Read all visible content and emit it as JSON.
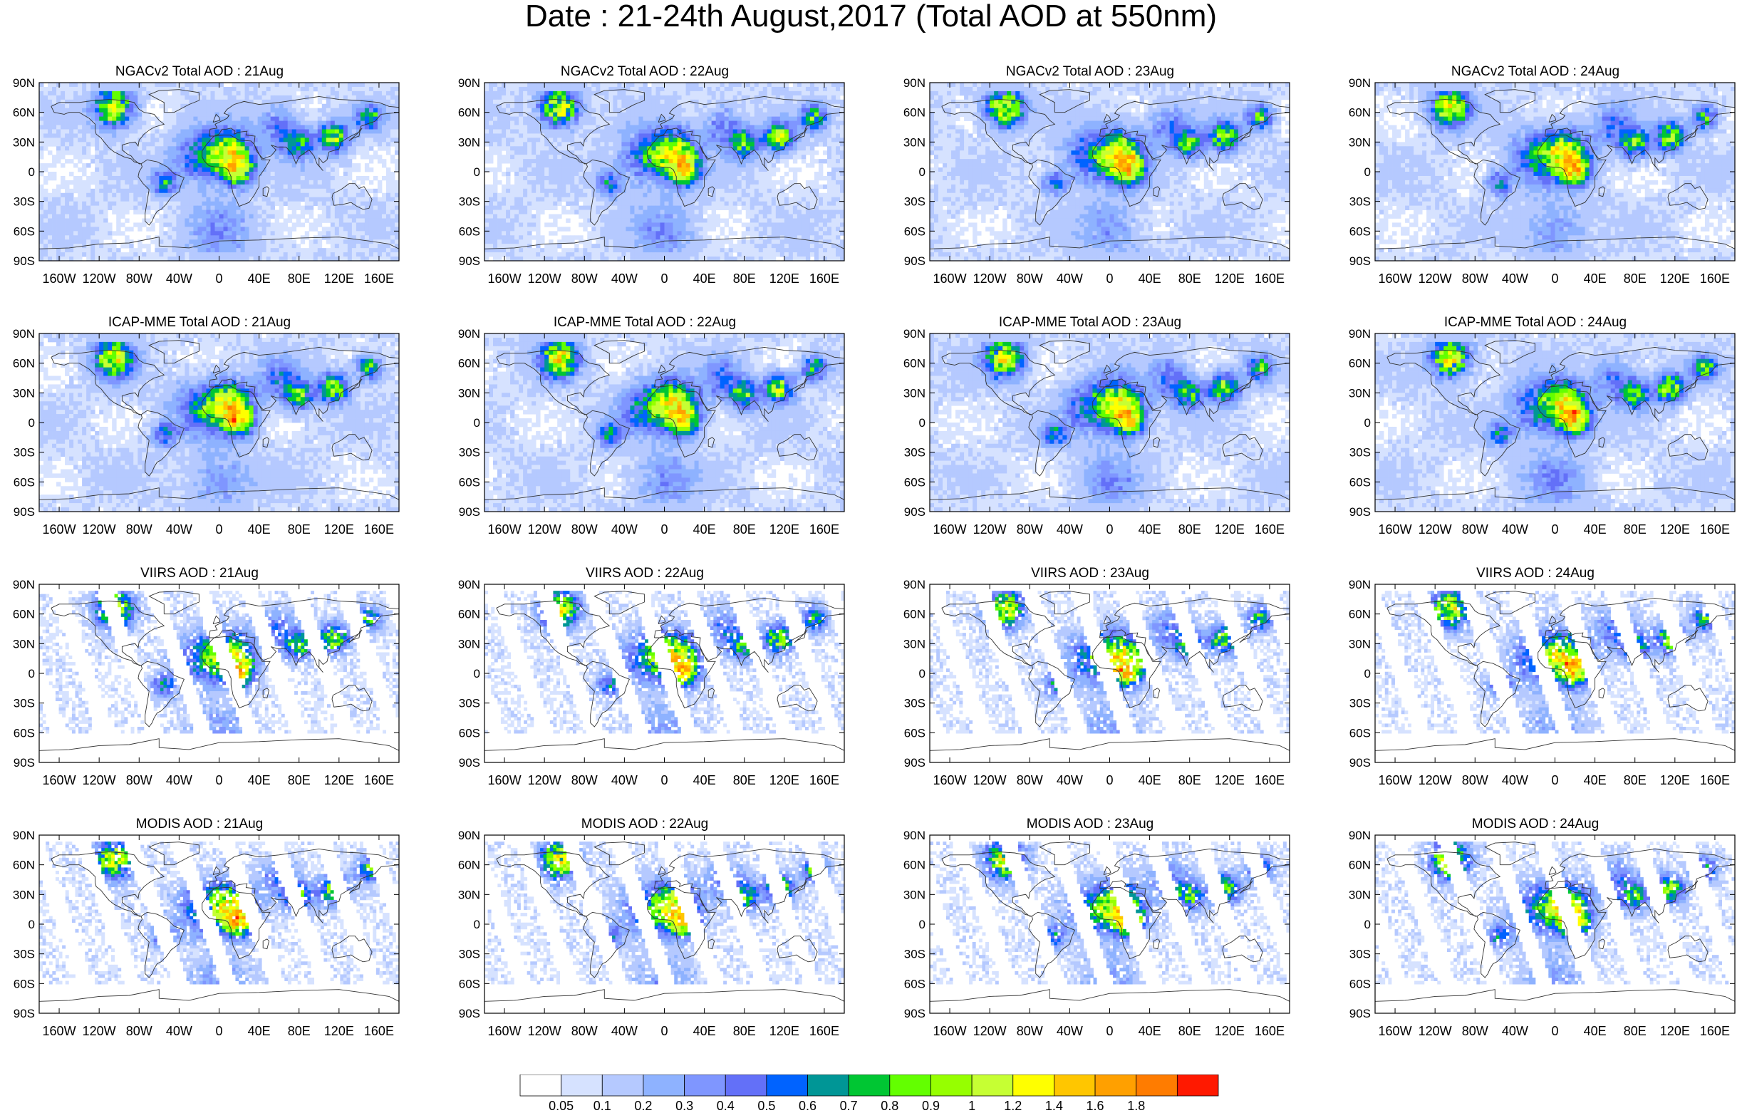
{
  "title": "Date : 21-24th August,2017 (Total AOD at 550nm)",
  "axis": {
    "lat_labels": [
      "90N",
      "60N",
      "30N",
      "0",
      "30S",
      "60S",
      "90S"
    ],
    "lon_labels": [
      "160W",
      "120W",
      "80W",
      "40W",
      "0",
      "40E",
      "80E",
      "120E",
      "160E"
    ]
  },
  "panels": [
    {
      "title": "NGACv2 Total AOD : 21Aug",
      "kind": "model",
      "seed": 11
    },
    {
      "title": "NGACv2 Total AOD : 22Aug",
      "kind": "model",
      "seed": 12
    },
    {
      "title": "NGACv2 Total AOD : 23Aug",
      "kind": "model",
      "seed": 13
    },
    {
      "title": "NGACv2 Total AOD : 24Aug",
      "kind": "model",
      "seed": 14
    },
    {
      "title": "ICAP-MME Total AOD : 21Aug",
      "kind": "model",
      "seed": 21
    },
    {
      "title": "ICAP-MME Total AOD : 22Aug",
      "kind": "model",
      "seed": 22
    },
    {
      "title": "ICAP-MME Total AOD : 23Aug",
      "kind": "model",
      "seed": 23
    },
    {
      "title": "ICAP-MME Total AOD : 24Aug",
      "kind": "model",
      "seed": 24
    },
    {
      "title": "VIIRS AOD : 21Aug",
      "kind": "sat",
      "seed": 31
    },
    {
      "title": "VIIRS AOD : 22Aug",
      "kind": "sat",
      "seed": 32
    },
    {
      "title": "VIIRS AOD : 23Aug",
      "kind": "sat",
      "seed": 33
    },
    {
      "title": "VIIRS AOD : 24Aug",
      "kind": "sat",
      "seed": 34
    },
    {
      "title": "MODIS AOD : 21Aug",
      "kind": "sat",
      "seed": 41
    },
    {
      "title": "MODIS AOD : 22Aug",
      "kind": "sat",
      "seed": 42
    },
    {
      "title": "MODIS AOD : 23Aug",
      "kind": "sat",
      "seed": 43
    },
    {
      "title": "MODIS AOD : 24Aug",
      "kind": "sat",
      "seed": 44
    }
  ],
  "colorbar": {
    "colors": [
      "#ffffff",
      "#d6e2ff",
      "#b5c9ff",
      "#8eb2ff",
      "#7f96ff",
      "#6370f8",
      "#0063ff",
      "#009696",
      "#00c633",
      "#63ff00",
      "#96ff00",
      "#c6ff33",
      "#ffff00",
      "#ffc600",
      "#ffa000",
      "#ff7c00",
      "#ff1900"
    ],
    "labels": [
      "0.05",
      "0.1",
      "0.2",
      "0.3",
      "0.4",
      "0.5",
      "0.6",
      "0.7",
      "0.8",
      "0.9",
      "1",
      "1.2",
      "1.4",
      "1.6",
      "1.8"
    ]
  }
}
